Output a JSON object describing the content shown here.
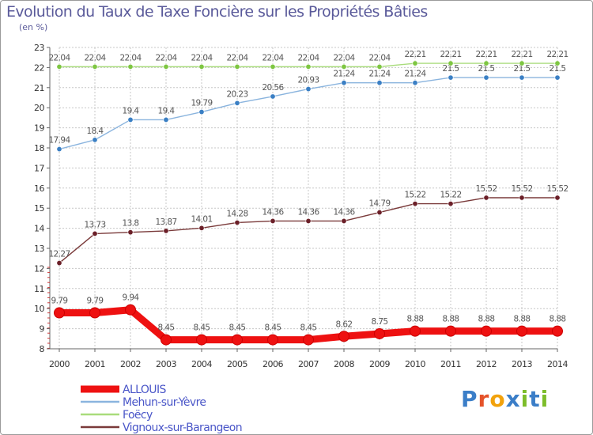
{
  "title": "Evolution du Taux de Taxe Foncière sur les Propriétés Bâties",
  "unit_label": "(en %)",
  "logo": {
    "text": "Proxiti",
    "letter_colors": [
      "#3b7ec8",
      "#e5532a",
      "#f2a20c",
      "#3b7ec8",
      "#7dbd2a",
      "#3b7ec8",
      "#7dbd2a"
    ]
  },
  "colors": {
    "grid": "#c7c7c7",
    "axis": "#666666",
    "tick_label": "#333333",
    "data_label": "#555555"
  },
  "chart_data": {
    "type": "line",
    "title": "Evolution du Taux de Taxe Foncière sur les Propriétés Bâties",
    "ylabel": "(en %)",
    "xlabel": "",
    "x": [
      "2000",
      "2001",
      "2002",
      "2003",
      "2004",
      "2005",
      "2006",
      "2007",
      "2008",
      "2009",
      "2010",
      "2011",
      "2012",
      "2013",
      "2014"
    ],
    "yticks": [
      8,
      9,
      10,
      11,
      12,
      13,
      14,
      15,
      16,
      17,
      18,
      19,
      20,
      21,
      22,
      23
    ],
    "ylim": [
      8,
      23
    ],
    "grid": true,
    "legend_position": "bottom-left",
    "series": [
      {
        "name": "ALLOUIS",
        "color": "#ee1111",
        "marker_color": "#ee1111",
        "emphasis": "thick",
        "values": [
          9.79,
          9.79,
          9.94,
          8.45,
          8.45,
          8.45,
          8.45,
          8.45,
          8.62,
          8.75,
          8.88,
          8.88,
          8.88,
          8.88,
          8.88
        ],
        "labels": [
          "9.79",
          "9.79",
          "9.94",
          "8.45",
          "8.45",
          "8.45",
          "8.45",
          "8.45",
          "8.62",
          "8.75",
          "8.88",
          "8.88",
          "8.88",
          "8.88",
          "8.88"
        ]
      },
      {
        "name": "Mehun-sur-Yèvre",
        "color": "#8ab4de",
        "marker_color": "#3a7fc4",
        "values": [
          17.94,
          18.4,
          19.4,
          19.4,
          19.79,
          20.23,
          20.56,
          20.93,
          21.24,
          21.24,
          21.24,
          21.5,
          21.5,
          21.5,
          21.5
        ],
        "labels": [
          "17.94",
          "18.4",
          "19.4",
          "19.4",
          "19.79",
          "20.23",
          "20.56",
          "20.93",
          "21.24",
          "21.24",
          "21.24",
          "21.5",
          "21.5",
          "21.5",
          "21.5"
        ]
      },
      {
        "name": "Foëcy",
        "color": "#a9dc7c",
        "marker_color": "#7ec642",
        "values": [
          22.04,
          22.04,
          22.04,
          22.04,
          22.04,
          22.04,
          22.04,
          22.04,
          22.04,
          22.04,
          22.21,
          22.21,
          22.21,
          22.21,
          22.21
        ],
        "labels": [
          "22.04",
          "22.04",
          "22.04",
          "22.04",
          "22.04",
          "22.04",
          "22.04",
          "22.04",
          "22.04",
          "22.04",
          "22.21",
          "22.21",
          "22.21",
          "22.21",
          "22.21"
        ]
      },
      {
        "name": "Vignoux-sur-Barangeon",
        "color": "#7a3a3a",
        "marker_color": "#6b1f28",
        "values": [
          12.27,
          13.73,
          13.8,
          13.87,
          14.01,
          14.28,
          14.36,
          14.36,
          14.36,
          14.79,
          15.22,
          15.22,
          15.52,
          15.52,
          15.52
        ],
        "labels": [
          "12.27",
          "13.73",
          "13.8",
          "13.87",
          "14.01",
          "14.28",
          "14.36",
          "14.36",
          "14.36",
          "14.79",
          "15.22",
          "15.22",
          "15.52",
          "15.52",
          "15.52"
        ]
      }
    ]
  }
}
